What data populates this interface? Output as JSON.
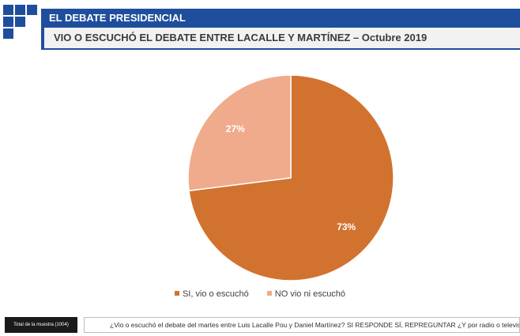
{
  "header": {
    "section_title": "EL DEBATE PRESIDENCIAL",
    "subtitle": "VIO O ESCUCHÓ EL DEBATE ENTRE LACALLE Y MARTÍNEZ – Octubre 2019"
  },
  "colors": {
    "brand": "#1f4e9c"
  },
  "chart_data": {
    "type": "pie",
    "slices": [
      {
        "label": "SI, vio o escuchó",
        "value": 73,
        "display": "73%",
        "color": "#d2722f"
      },
      {
        "label": "NO vio ni escuchó",
        "value": 27,
        "display": "27%",
        "color": "#f0aa8c"
      }
    ],
    "legend_position": "bottom"
  },
  "footer": {
    "sample_label": "Total de la muestra (1004)",
    "question": "¿Vio o escuchó el debate del martes entre Luis Lacalle Pou y Daniel Martínez?   SI RESPONDE SÍ, REPREGUNTAR  ¿Y por radio o televis"
  }
}
